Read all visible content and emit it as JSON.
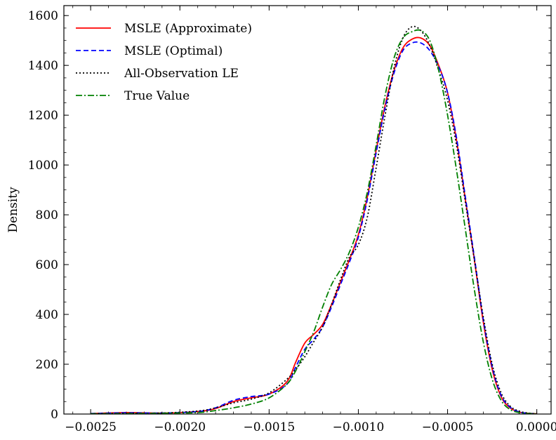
{
  "chart_data": {
    "type": "line",
    "title": "",
    "xlabel": "",
    "ylabel": "Density",
    "xlim": [
      -0.00265,
      8e-05
    ],
    "ylim": [
      0,
      1640
    ],
    "x_ticks": [
      -0.0025,
      -0.002,
      -0.0015,
      -0.001,
      -0.0005,
      0.0
    ],
    "x_tick_labels": [
      "−0.0025",
      "−0.0020",
      "−0.0015",
      "−0.0010",
      "−0.0005",
      "0.0000"
    ],
    "y_ticks": [
      0,
      200,
      400,
      600,
      800,
      1000,
      1200,
      1400,
      1600
    ],
    "y_tick_labels": [
      "0",
      "200",
      "400",
      "600",
      "800",
      "1000",
      "1200",
      "1400",
      "1600"
    ],
    "legend_position": "top-left",
    "series": [
      {
        "name": "MSLE (Approximate)",
        "color": "#ff0000",
        "dash": "solid",
        "x": [
          -0.0025,
          -0.0023,
          -0.0021,
          -0.0019,
          -0.0018,
          -0.0017,
          -0.0016,
          -0.0015,
          -0.0014,
          -0.00135,
          -0.0013,
          -0.00125,
          -0.0012,
          -0.00115,
          -0.0011,
          -0.00105,
          -0.001,
          -0.00095,
          -0.0009,
          -0.00085,
          -0.0008,
          -0.00075,
          -0.0007,
          -0.00065,
          -0.0006,
          -0.00055,
          -0.0005,
          -0.00045,
          -0.0004,
          -0.00035,
          -0.0003,
          -0.00025,
          -0.0002,
          -0.00015,
          -0.0001,
          -5e-05,
          0.0
        ],
        "y": [
          2,
          6,
          4,
          10,
          22,
          50,
          65,
          80,
          130,
          210,
          285,
          320,
          360,
          440,
          530,
          620,
          720,
          870,
          1060,
          1240,
          1380,
          1470,
          1505,
          1510,
          1480,
          1400,
          1290,
          1100,
          860,
          620,
          370,
          180,
          70,
          25,
          8,
          3,
          1
        ]
      },
      {
        "name": "MSLE (Optimal)",
        "color": "#0000ff",
        "dash": "dashed",
        "x": [
          -0.0025,
          -0.0023,
          -0.0021,
          -0.0019,
          -0.0018,
          -0.0017,
          -0.0016,
          -0.0015,
          -0.0014,
          -0.00135,
          -0.0013,
          -0.00125,
          -0.0012,
          -0.00115,
          -0.0011,
          -0.00105,
          -0.001,
          -0.00095,
          -0.0009,
          -0.00085,
          -0.0008,
          -0.00075,
          -0.0007,
          -0.00065,
          -0.0006,
          -0.00055,
          -0.0005,
          -0.00045,
          -0.0004,
          -0.00035,
          -0.0003,
          -0.00025,
          -0.0002,
          -0.00015,
          -0.0001,
          -5e-05,
          0.0
        ],
        "y": [
          2,
          5,
          4,
          10,
          25,
          55,
          70,
          80,
          120,
          190,
          260,
          300,
          350,
          430,
          520,
          610,
          710,
          860,
          1050,
          1230,
          1370,
          1460,
          1490,
          1490,
          1460,
          1395,
          1290,
          1110,
          870,
          630,
          380,
          190,
          75,
          28,
          9,
          3,
          1
        ]
      },
      {
        "name": "All-Observation LE",
        "color": "#000000",
        "dash": "dotted",
        "x": [
          -0.0025,
          -0.0023,
          -0.0021,
          -0.0019,
          -0.0018,
          -0.0017,
          -0.0016,
          -0.0015,
          -0.0014,
          -0.00135,
          -0.0013,
          -0.00125,
          -0.0012,
          -0.00115,
          -0.0011,
          -0.00105,
          -0.001,
          -0.00095,
          -0.0009,
          -0.00085,
          -0.0008,
          -0.00075,
          -0.0007,
          -0.00065,
          -0.0006,
          -0.00055,
          -0.0005,
          -0.00045,
          -0.0004,
          -0.00035,
          -0.0003,
          -0.00025,
          -0.0002,
          -0.00015,
          -0.0001,
          -5e-05,
          0.0
        ],
        "y": [
          1,
          3,
          4,
          12,
          25,
          45,
          60,
          85,
          140,
          180,
          230,
          290,
          350,
          440,
          540,
          630,
          680,
          790,
          990,
          1200,
          1390,
          1510,
          1555,
          1540,
          1480,
          1380,
          1260,
          1080,
          850,
          620,
          390,
          200,
          85,
          32,
          12,
          4,
          1
        ]
      },
      {
        "name": "True Value",
        "color": "#008000",
        "dash": "dashdot",
        "x": [
          -0.0025,
          -0.0023,
          -0.0021,
          -0.0019,
          -0.0018,
          -0.0017,
          -0.0016,
          -0.0015,
          -0.0014,
          -0.00135,
          -0.0013,
          -0.00125,
          -0.0012,
          -0.00115,
          -0.0011,
          -0.00105,
          -0.001,
          -0.00095,
          -0.0009,
          -0.00085,
          -0.0008,
          -0.00075,
          -0.0007,
          -0.00065,
          -0.0006,
          -0.00055,
          -0.0005,
          -0.00045,
          -0.0004,
          -0.00035,
          -0.0003,
          -0.00025,
          -0.0002,
          -0.00015,
          -0.0001,
          -5e-05,
          0.0
        ],
        "y": [
          1,
          2,
          3,
          6,
          14,
          25,
          40,
          65,
          120,
          175,
          250,
          330,
          430,
          520,
          580,
          650,
          750,
          890,
          1080,
          1280,
          1430,
          1510,
          1535,
          1540,
          1500,
          1380,
          1200,
          980,
          740,
          500,
          290,
          140,
          55,
          18,
          6,
          2,
          1
        ]
      }
    ]
  }
}
